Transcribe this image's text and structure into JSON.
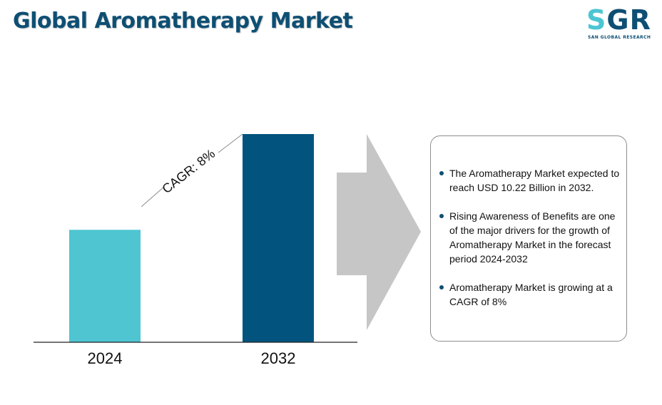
{
  "header": {
    "title": "Global Aromatherapy Market"
  },
  "logo": {
    "letter_s": "S",
    "letters_gr": "GR",
    "subtitle": "SAN GLOBAL RESEARCH"
  },
  "chart_data": {
    "type": "bar",
    "categories": [
      "2024",
      "2032"
    ],
    "values": [
      5.52,
      10.22
    ],
    "title": "Global Aromatherapy Market",
    "xlabel": "",
    "ylabel": "",
    "ylim": [
      0,
      10.22
    ],
    "grid": false,
    "bar_colors": [
      "#4fc5d2",
      "#02547e"
    ],
    "annotation": "CAGR: 8%"
  },
  "info": {
    "bullets": [
      "The Aromatherapy Market expected to reach USD 10.22 Billion in 2032.",
      "Rising Awareness of Benefits are one of the major drivers for the growth of Aromatherapy Market in the forecast period 2024-2032",
      "Aromatherapy Market is growing at a CAGR of 8%"
    ]
  },
  "colors": {
    "title": "#0e4f73",
    "arrow": "#c6c6c6",
    "bullet_dot": "#0e4f73"
  }
}
